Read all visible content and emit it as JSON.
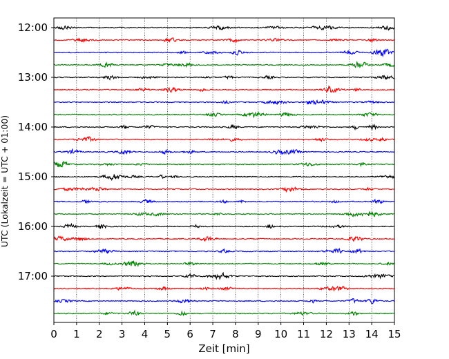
{
  "chart_data": {
    "type": "line",
    "title": "",
    "xlabel": "Zeit  [min]",
    "ylabel": "UTC (Lokalzeit = UTC + 01:00)",
    "xlim": [
      0,
      15
    ],
    "x_ticks": [
      "0",
      "1",
      "2",
      "3",
      "4",
      "5",
      "6",
      "7",
      "8",
      "9",
      "10",
      "11",
      "12",
      "13",
      "14",
      "15"
    ],
    "y_tick_labels": [
      "12:00",
      "13:00",
      "14:00",
      "15:00",
      "16:00",
      "17:00"
    ],
    "grid": "vertical dotted at each minute",
    "trace_colors": [
      "#000000",
      "#ff0000",
      "#0000ff",
      "#008000"
    ],
    "trace_start_times": [
      "12:00",
      "12:15",
      "12:30",
      "12:45",
      "13:00",
      "13:15",
      "13:30",
      "13:45",
      "14:00",
      "14:15",
      "14:30",
      "14:45",
      "15:00",
      "15:15",
      "15:30",
      "15:45",
      "16:00",
      "16:15",
      "16:30",
      "16:45",
      "17:00",
      "17:15",
      "17:30",
      "17:45"
    ]
  }
}
